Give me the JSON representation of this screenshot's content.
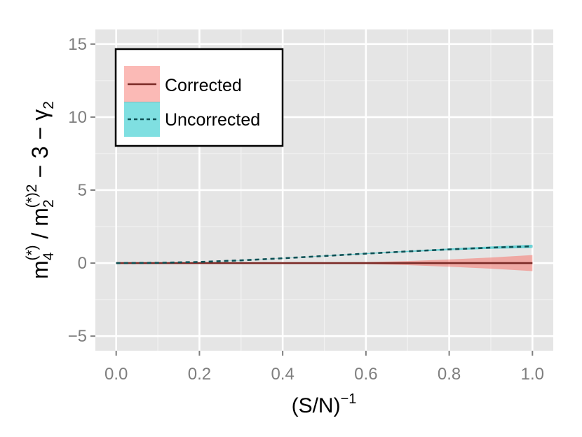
{
  "chart_data": {
    "type": "line",
    "title": "",
    "x_axis": {
      "label_base": "(S/N)",
      "label_sup": "−1",
      "range": [
        -0.05,
        1.05
      ],
      "ticks": [
        0.0,
        0.2,
        0.4,
        0.6,
        0.8,
        1.0
      ],
      "tick_labels": [
        "0.0",
        "0.2",
        "0.4",
        "0.6",
        "0.8",
        "1.0"
      ],
      "minor_ticks": [
        0.1,
        0.3,
        0.5,
        0.7,
        0.9
      ]
    },
    "y_axis": {
      "label_parts": {
        "m": "m",
        "sub4": "4",
        "sup4": "(*)",
        "slash": " / m",
        "sub2": "2",
        "sup2": "(*)2",
        "minus3": "  − 3 − γ",
        "gamma_sub": "2"
      },
      "range": [
        -6,
        16
      ],
      "ticks": [
        -5,
        0,
        5,
        10,
        15
      ],
      "tick_labels": [
        "−5",
        "0",
        "5",
        "10",
        "15"
      ],
      "minor_ticks": [
        -2.5,
        2.5,
        7.5,
        12.5
      ]
    },
    "grid": true,
    "legend_position": "top-left",
    "series": [
      {
        "name": "Corrected",
        "line_color": "#7b2a26",
        "ribbon_color": "#f8766d",
        "line_style": "solid",
        "x": [
          0.0,
          0.1,
          0.2,
          0.3,
          0.4,
          0.5,
          0.6,
          0.7,
          0.8,
          0.9,
          1.0
        ],
        "y": [
          0,
          0,
          0,
          0,
          0,
          0,
          0,
          0,
          0,
          0,
          0
        ],
        "lower": [
          0,
          0,
          0,
          0,
          -0.01,
          -0.03,
          -0.07,
          -0.14,
          -0.25,
          -0.38,
          -0.55
        ],
        "upper": [
          0,
          0,
          0,
          0,
          0.01,
          0.03,
          0.07,
          0.14,
          0.25,
          0.38,
          0.55
        ]
      },
      {
        "name": "Uncorrected",
        "line_color": "#0e5054",
        "ribbon_color": "#00bfc4",
        "line_style": "dashed",
        "x": [
          0.0,
          0.1,
          0.2,
          0.3,
          0.4,
          0.5,
          0.6,
          0.7,
          0.8,
          0.9,
          1.0
        ],
        "y": [
          0,
          0.02,
          0.08,
          0.19,
          0.33,
          0.49,
          0.65,
          0.8,
          0.94,
          1.06,
          1.15
        ],
        "lower": [
          0,
          0.02,
          0.08,
          0.18,
          0.32,
          0.47,
          0.62,
          0.76,
          0.88,
          0.98,
          1.04
        ],
        "upper": [
          0,
          0.02,
          0.08,
          0.2,
          0.34,
          0.51,
          0.68,
          0.84,
          1.0,
          1.14,
          1.26
        ]
      }
    ]
  }
}
